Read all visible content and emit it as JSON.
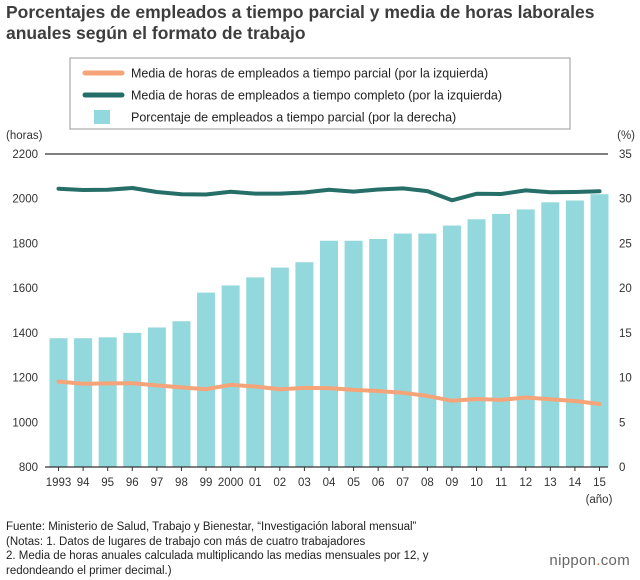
{
  "header": {
    "title_line1": "Porcentajes de empleados a tiempo parcial y media de horas laborales",
    "title_line2": "anuales según el formato de trabajo"
  },
  "chart_data": {
    "type": "bar+line",
    "left_axis": {
      "unit_label": "(horas)",
      "range": [
        800,
        2200
      ],
      "ticks": [
        800,
        1000,
        1200,
        1400,
        1600,
        1800,
        2000,
        2200
      ]
    },
    "right_axis": {
      "unit_label": "(%)",
      "range": [
        0,
        35
      ],
      "ticks": [
        0,
        5,
        10,
        15,
        20,
        25,
        30,
        35
      ]
    },
    "x_unit_label": "(año)",
    "categories": [
      "1993",
      "94",
      "95",
      "96",
      "97",
      "98",
      "99",
      "2000",
      "01",
      "02",
      "03",
      "04",
      "05",
      "06",
      "07",
      "08",
      "09",
      "10",
      "11",
      "12",
      "13",
      "14",
      "15"
    ],
    "legend": {
      "position": "top",
      "items": [
        {
          "label": "Media de horas de empleados a tiempo parcial (por la izquierda)",
          "type": "line",
          "color": "#f5a47a"
        },
        {
          "label": "Media de horas de empleados a tiempo completo (por la izquierda)",
          "type": "line",
          "color": "#266e68"
        },
        {
          "label": "Porcentaje de empleados a tiempo parcial (por la derecha)",
          "type": "bar",
          "color": "#93d8dc"
        }
      ]
    },
    "series": [
      {
        "name": "Porcentaje de empleados a tiempo parcial (por la derecha)",
        "type": "bar",
        "axis": "right",
        "color": "#93d8dc",
        "values": [
          14.4,
          14.4,
          14.5,
          15.0,
          15.6,
          16.3,
          19.5,
          20.3,
          21.2,
          22.3,
          22.9,
          25.3,
          25.3,
          25.5,
          26.1,
          26.1,
          27.0,
          27.7,
          28.3,
          28.8,
          29.6,
          29.8,
          30.5
        ]
      },
      {
        "name": "Media de horas de empleados a tiempo completo (por la izquierda)",
        "type": "line",
        "axis": "left",
        "color": "#266e68",
        "values": [
          2045,
          2039,
          2040,
          2048,
          2030,
          2020,
          2019,
          2031,
          2023,
          2023,
          2028,
          2040,
          2032,
          2041,
          2046,
          2034,
          1993,
          2022,
          2021,
          2037,
          2029,
          2030,
          2033
        ]
      },
      {
        "name": "Media de horas de empleados a tiempo parcial (por la izquierda)",
        "type": "line",
        "axis": "left",
        "color": "#f5a47a",
        "values": [
          1182,
          1172,
          1174,
          1175,
          1165,
          1156,
          1148,
          1167,
          1160,
          1148,
          1154,
          1153,
          1145,
          1140,
          1132,
          1118,
          1096,
          1104,
          1100,
          1111,
          1103,
          1095,
          1082
        ]
      }
    ]
  },
  "footer": {
    "source": "Fuente: Ministerio de Salud, Trabajo y Bienestar, “Investigación laboral mensual”",
    "note1": "(Notas: 1. Datos de lugares de trabajo con más de cuatro trabajadores",
    "note2": "2. Media de horas anuales calculada multiplicando las medias mensuales por 12, y",
    "note3": "redondeando el primer decimal.)"
  },
  "branding": {
    "name": "nippon",
    "dot": ".",
    "tld": "com"
  }
}
